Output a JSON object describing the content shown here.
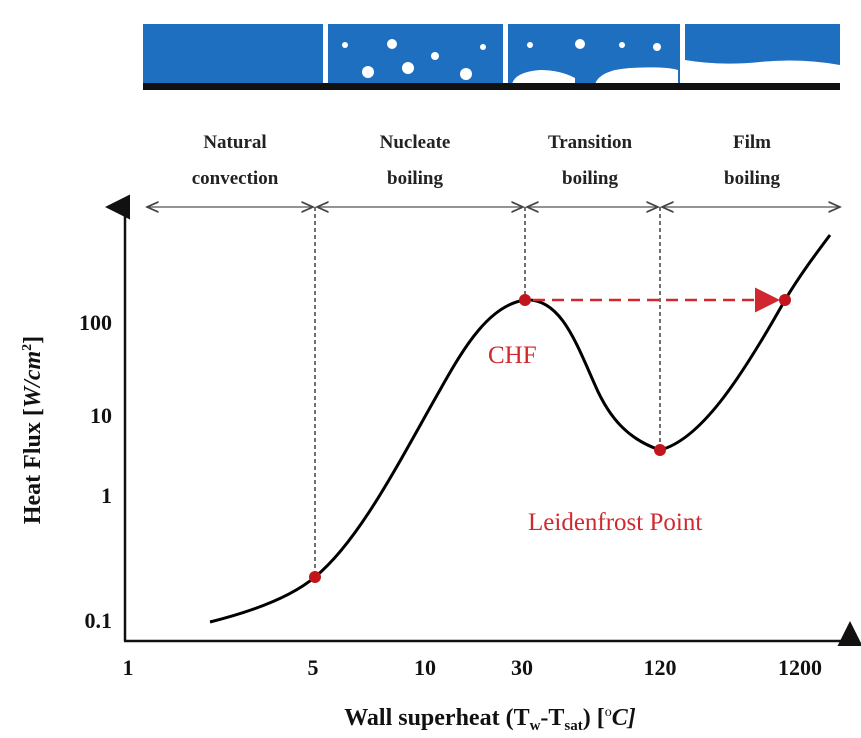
{
  "regimes": [
    {
      "lines": [
        "Natural",
        "convection"
      ]
    },
    {
      "lines": [
        "Nucleate",
        "boiling"
      ]
    },
    {
      "lines": [
        "Transition",
        "boiling"
      ]
    },
    {
      "lines": [
        "Film",
        "boiling"
      ]
    }
  ],
  "y_axis": {
    "title_parts": [
      "Heat Flux [",
      "W/cm",
      "2",
      "]"
    ],
    "ticks": [
      "100",
      "10",
      "1",
      "0.1"
    ]
  },
  "x_axis": {
    "title_parts": [
      "Wall superheat (T",
      "w",
      "-T",
      "sat",
      ") [",
      "o",
      "C]"
    ],
    "ticks": [
      "1",
      "5",
      "10",
      "30",
      "120",
      "1200"
    ]
  },
  "annotations": {
    "chf": "CHF",
    "leidenfrost": "Leidenfrost Point"
  }
}
